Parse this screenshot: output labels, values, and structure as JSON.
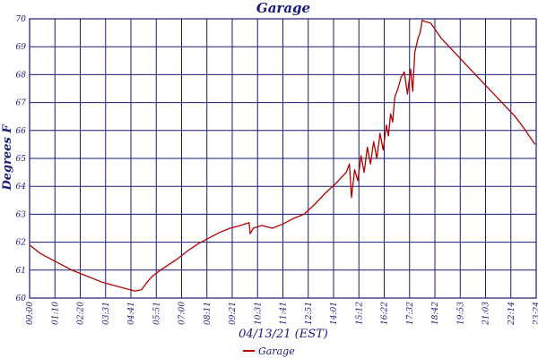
{
  "chart_data": {
    "type": "line",
    "title": "Garage",
    "xlabel": "04/13/21 (EST)",
    "ylabel": "Degrees F",
    "x_ticks": [
      "00:00",
      "01:10",
      "02:20",
      "03:31",
      "04:41",
      "05:51",
      "07:00",
      "08:11",
      "09:21",
      "10:31",
      "11:41",
      "12:51",
      "14:01",
      "15:12",
      "16:22",
      "17:32",
      "18:42",
      "19:53",
      "21:03",
      "22:14",
      "23:24"
    ],
    "y_ticks": [
      "60",
      "61",
      "62",
      "63",
      "64",
      "65",
      "66",
      "67",
      "68",
      "69",
      "70"
    ],
    "ylim": [
      60,
      70
    ],
    "grid": true,
    "legend_position": "bottom-center",
    "line_color": "#b00000",
    "grid_color": "#1a1a7a",
    "series": [
      {
        "name": "Garage",
        "x": [
          0.0,
          0.5,
          1.0,
          1.5,
          2.0,
          2.5,
          3.0,
          3.5,
          4.0,
          4.5,
          5.0,
          5.3,
          5.6,
          5.85,
          6.2,
          6.6,
          7.0,
          7.5,
          8.0,
          8.5,
          9.0,
          9.5,
          10.0,
          10.4,
          10.45,
          10.6,
          11.0,
          11.5,
          12.0,
          12.5,
          13.0,
          13.5,
          14.0,
          14.5,
          15.0,
          15.15,
          15.25,
          15.4,
          15.55,
          15.7,
          15.85,
          16.0,
          16.15,
          16.3,
          16.45,
          16.6,
          16.75,
          16.9,
          17.0,
          17.1,
          17.2,
          17.3,
          17.45,
          17.6,
          17.75,
          17.9,
          18.05,
          18.15,
          18.25,
          18.4,
          18.5,
          18.6,
          18.75,
          19.0,
          19.5,
          20.0,
          20.5,
          21.0,
          21.5,
          22.0,
          22.5,
          23.0,
          23.4,
          23.95
        ],
        "y": [
          61.9,
          61.6,
          61.4,
          61.2,
          61.0,
          60.85,
          60.7,
          60.55,
          60.45,
          60.35,
          60.25,
          60.3,
          60.6,
          60.8,
          61.0,
          61.2,
          61.4,
          61.7,
          61.95,
          62.15,
          62.35,
          62.5,
          62.6,
          62.7,
          62.3,
          62.5,
          62.6,
          62.5,
          62.65,
          62.85,
          63.0,
          63.35,
          63.75,
          64.1,
          64.5,
          64.8,
          63.6,
          64.6,
          64.2,
          65.1,
          64.5,
          65.4,
          64.8,
          65.6,
          65.0,
          65.9,
          65.3,
          66.2,
          65.8,
          66.6,
          66.3,
          67.2,
          67.5,
          67.9,
          68.1,
          67.3,
          68.2,
          67.4,
          68.8,
          69.3,
          69.5,
          69.95,
          69.9,
          69.85,
          69.3,
          68.9,
          68.5,
          68.1,
          67.7,
          67.3,
          66.9,
          66.5,
          66.1,
          65.5
        ]
      }
    ]
  }
}
